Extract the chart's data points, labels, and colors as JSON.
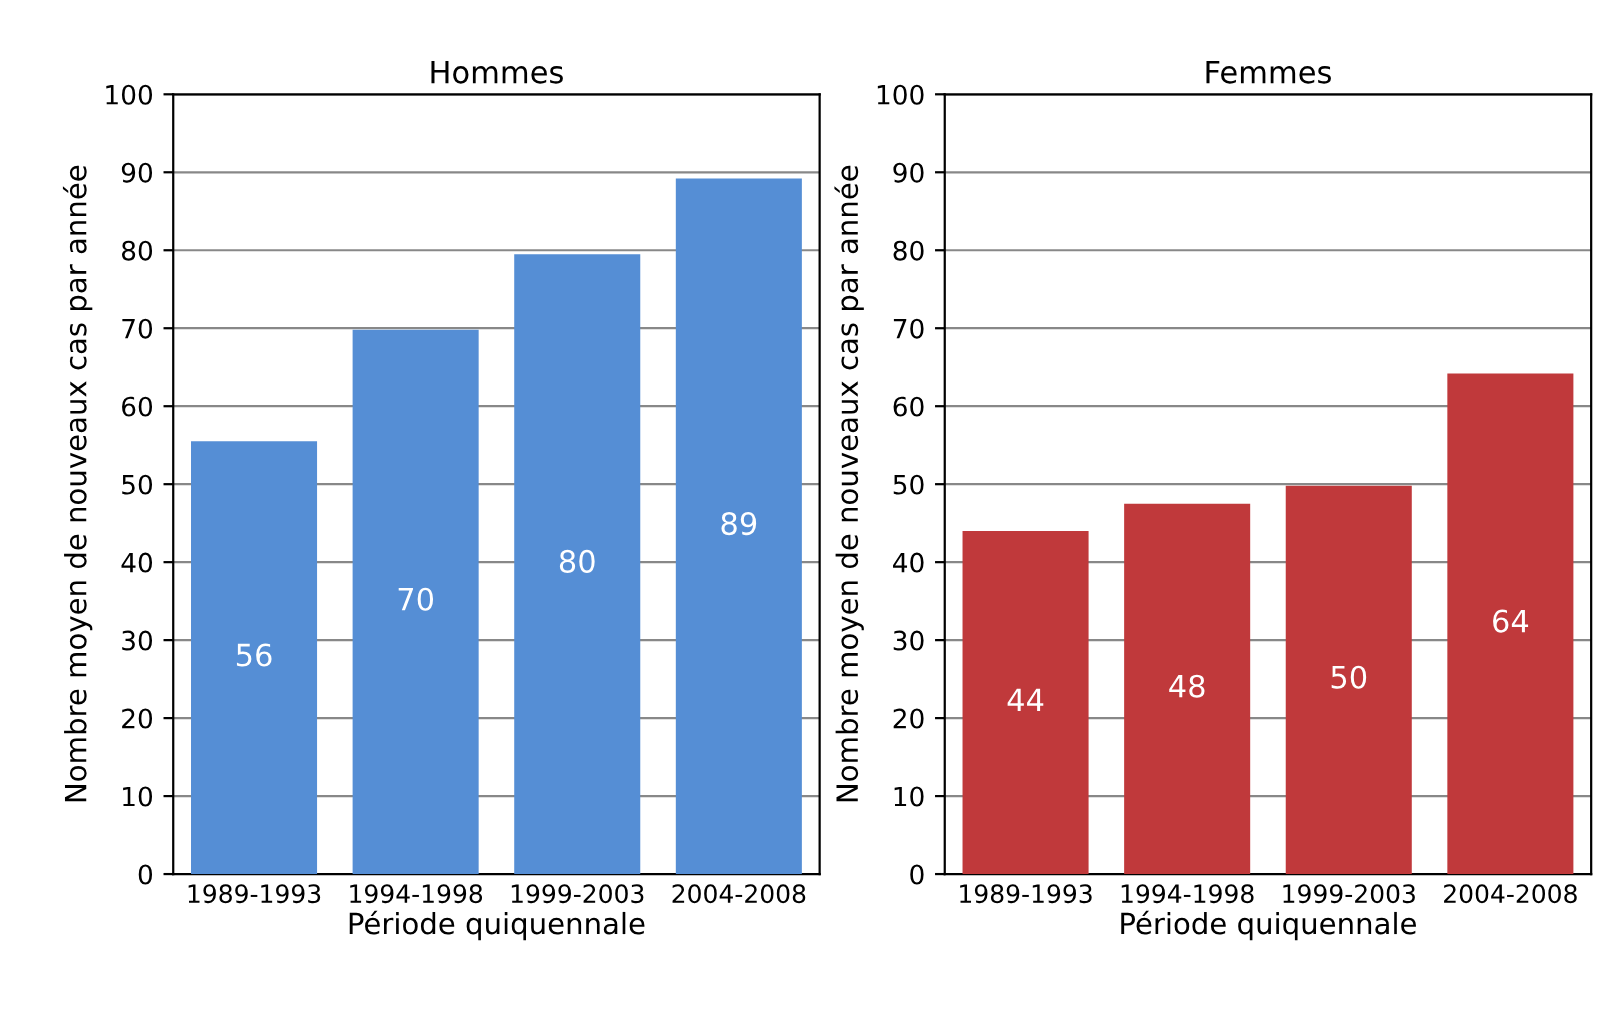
{
  "chart_data": [
    {
      "type": "bar",
      "title": "Hommes",
      "xlabel": "Période quiquennale",
      "ylabel": "Nombre moyen de nouveaux cas par année",
      "categories": [
        "1989-1993",
        "1994-1998",
        "1999-2003",
        "2004-2008"
      ],
      "values": [
        55.5,
        69.8,
        79.5,
        89.2
      ],
      "value_labels": [
        "56",
        "70",
        "80",
        "89"
      ],
      "color": "#558ed5",
      "ylim": [
        0,
        100
      ],
      "yticks": [
        0,
        10,
        20,
        30,
        40,
        50,
        60,
        70,
        80,
        90,
        100
      ],
      "grid": "y",
      "legend": false
    },
    {
      "type": "bar",
      "title": "Femmes",
      "xlabel": "Période quiquennale",
      "ylabel": "Nombre moyen de nouveaux cas par année",
      "categories": [
        "1989-1993",
        "1994-1998",
        "1999-2003",
        "2004-2008"
      ],
      "values": [
        44.0,
        47.5,
        49.8,
        64.2
      ],
      "value_labels": [
        "44",
        "48",
        "50",
        "64"
      ],
      "color": "#c0393b",
      "ylim": [
        0,
        100
      ],
      "yticks": [
        0,
        10,
        20,
        30,
        40,
        50,
        60,
        70,
        80,
        90,
        100
      ],
      "grid": "y",
      "legend": false
    }
  ]
}
